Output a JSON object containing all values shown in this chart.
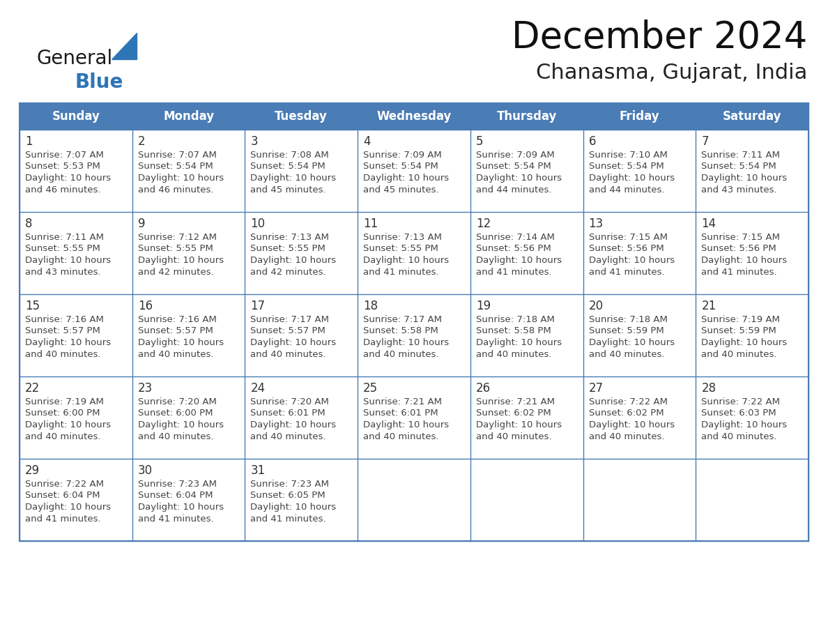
{
  "title": "December 2024",
  "subtitle": "Chanasma, Gujarat, India",
  "header_bg": "#4A7CB5",
  "header_text_color": "#FFFFFF",
  "weekdays": [
    "Sunday",
    "Monday",
    "Tuesday",
    "Wednesday",
    "Thursday",
    "Friday",
    "Saturday"
  ],
  "cell_border_color": "#4A7CB5",
  "day_text_color": "#333333",
  "info_text_color": "#444444",
  "logo_general_color": "#1a1a1a",
  "logo_blue_color": "#2E75B6",
  "logo_triangle_color": "#2E75B6",
  "calendar": [
    [
      {
        "day": "1",
        "sunrise": "7:07 AM",
        "sunset": "5:53 PM",
        "daylight_line1": "Daylight: 10 hours",
        "daylight_line2": "and 46 minutes."
      },
      {
        "day": "2",
        "sunrise": "7:07 AM",
        "sunset": "5:54 PM",
        "daylight_line1": "Daylight: 10 hours",
        "daylight_line2": "and 46 minutes."
      },
      {
        "day": "3",
        "sunrise": "7:08 AM",
        "sunset": "5:54 PM",
        "daylight_line1": "Daylight: 10 hours",
        "daylight_line2": "and 45 minutes."
      },
      {
        "day": "4",
        "sunrise": "7:09 AM",
        "sunset": "5:54 PM",
        "daylight_line1": "Daylight: 10 hours",
        "daylight_line2": "and 45 minutes."
      },
      {
        "day": "5",
        "sunrise": "7:09 AM",
        "sunset": "5:54 PM",
        "daylight_line1": "Daylight: 10 hours",
        "daylight_line2": "and 44 minutes."
      },
      {
        "day": "6",
        "sunrise": "7:10 AM",
        "sunset": "5:54 PM",
        "daylight_line1": "Daylight: 10 hours",
        "daylight_line2": "and 44 minutes."
      },
      {
        "day": "7",
        "sunrise": "7:11 AM",
        "sunset": "5:54 PM",
        "daylight_line1": "Daylight: 10 hours",
        "daylight_line2": "and 43 minutes."
      }
    ],
    [
      {
        "day": "8",
        "sunrise": "7:11 AM",
        "sunset": "5:55 PM",
        "daylight_line1": "Daylight: 10 hours",
        "daylight_line2": "and 43 minutes."
      },
      {
        "day": "9",
        "sunrise": "7:12 AM",
        "sunset": "5:55 PM",
        "daylight_line1": "Daylight: 10 hours",
        "daylight_line2": "and 42 minutes."
      },
      {
        "day": "10",
        "sunrise": "7:13 AM",
        "sunset": "5:55 PM",
        "daylight_line1": "Daylight: 10 hours",
        "daylight_line2": "and 42 minutes."
      },
      {
        "day": "11",
        "sunrise": "7:13 AM",
        "sunset": "5:55 PM",
        "daylight_line1": "Daylight: 10 hours",
        "daylight_line2": "and 41 minutes."
      },
      {
        "day": "12",
        "sunrise": "7:14 AM",
        "sunset": "5:56 PM",
        "daylight_line1": "Daylight: 10 hours",
        "daylight_line2": "and 41 minutes."
      },
      {
        "day": "13",
        "sunrise": "7:15 AM",
        "sunset": "5:56 PM",
        "daylight_line1": "Daylight: 10 hours",
        "daylight_line2": "and 41 minutes."
      },
      {
        "day": "14",
        "sunrise": "7:15 AM",
        "sunset": "5:56 PM",
        "daylight_line1": "Daylight: 10 hours",
        "daylight_line2": "and 41 minutes."
      }
    ],
    [
      {
        "day": "15",
        "sunrise": "7:16 AM",
        "sunset": "5:57 PM",
        "daylight_line1": "Daylight: 10 hours",
        "daylight_line2": "and 40 minutes."
      },
      {
        "day": "16",
        "sunrise": "7:16 AM",
        "sunset": "5:57 PM",
        "daylight_line1": "Daylight: 10 hours",
        "daylight_line2": "and 40 minutes."
      },
      {
        "day": "17",
        "sunrise": "7:17 AM",
        "sunset": "5:57 PM",
        "daylight_line1": "Daylight: 10 hours",
        "daylight_line2": "and 40 minutes."
      },
      {
        "day": "18",
        "sunrise": "7:17 AM",
        "sunset": "5:58 PM",
        "daylight_line1": "Daylight: 10 hours",
        "daylight_line2": "and 40 minutes."
      },
      {
        "day": "19",
        "sunrise": "7:18 AM",
        "sunset": "5:58 PM",
        "daylight_line1": "Daylight: 10 hours",
        "daylight_line2": "and 40 minutes."
      },
      {
        "day": "20",
        "sunrise": "7:18 AM",
        "sunset": "5:59 PM",
        "daylight_line1": "Daylight: 10 hours",
        "daylight_line2": "and 40 minutes."
      },
      {
        "day": "21",
        "sunrise": "7:19 AM",
        "sunset": "5:59 PM",
        "daylight_line1": "Daylight: 10 hours",
        "daylight_line2": "and 40 minutes."
      }
    ],
    [
      {
        "day": "22",
        "sunrise": "7:19 AM",
        "sunset": "6:00 PM",
        "daylight_line1": "Daylight: 10 hours",
        "daylight_line2": "and 40 minutes."
      },
      {
        "day": "23",
        "sunrise": "7:20 AM",
        "sunset": "6:00 PM",
        "daylight_line1": "Daylight: 10 hours",
        "daylight_line2": "and 40 minutes."
      },
      {
        "day": "24",
        "sunrise": "7:20 AM",
        "sunset": "6:01 PM",
        "daylight_line1": "Daylight: 10 hours",
        "daylight_line2": "and 40 minutes."
      },
      {
        "day": "25",
        "sunrise": "7:21 AM",
        "sunset": "6:01 PM",
        "daylight_line1": "Daylight: 10 hours",
        "daylight_line2": "and 40 minutes."
      },
      {
        "day": "26",
        "sunrise": "7:21 AM",
        "sunset": "6:02 PM",
        "daylight_line1": "Daylight: 10 hours",
        "daylight_line2": "and 40 minutes."
      },
      {
        "day": "27",
        "sunrise": "7:22 AM",
        "sunset": "6:02 PM",
        "daylight_line1": "Daylight: 10 hours",
        "daylight_line2": "and 40 minutes."
      },
      {
        "day": "28",
        "sunrise": "7:22 AM",
        "sunset": "6:03 PM",
        "daylight_line1": "Daylight: 10 hours",
        "daylight_line2": "and 40 minutes."
      }
    ],
    [
      {
        "day": "29",
        "sunrise": "7:22 AM",
        "sunset": "6:04 PM",
        "daylight_line1": "Daylight: 10 hours",
        "daylight_line2": "and 41 minutes."
      },
      {
        "day": "30",
        "sunrise": "7:23 AM",
        "sunset": "6:04 PM",
        "daylight_line1": "Daylight: 10 hours",
        "daylight_line2": "and 41 minutes."
      },
      {
        "day": "31",
        "sunrise": "7:23 AM",
        "sunset": "6:05 PM",
        "daylight_line1": "Daylight: 10 hours",
        "daylight_line2": "and 41 minutes."
      },
      null,
      null,
      null,
      null
    ]
  ]
}
